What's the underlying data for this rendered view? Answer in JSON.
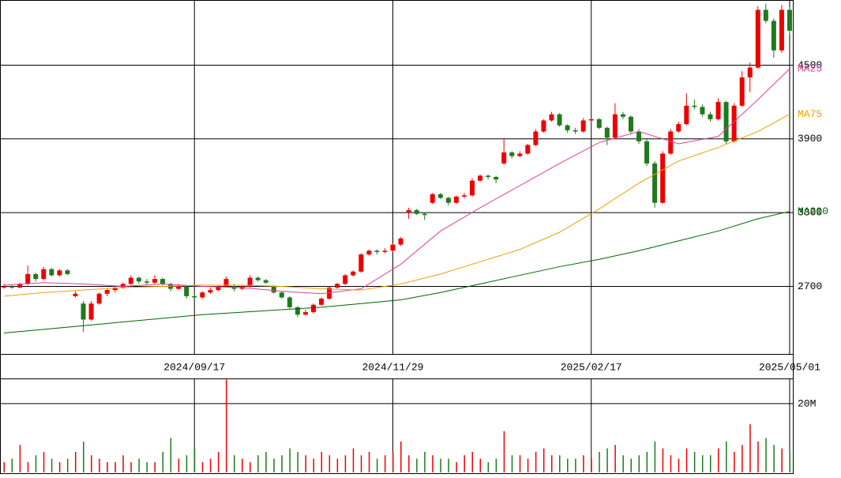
{
  "chart_data": {
    "type": "candlestick",
    "categories": [
      null,
      null,
      null,
      null,
      null,
      null,
      null,
      null,
      null,
      null,
      null,
      null,
      null,
      null,
      null,
      null,
      null,
      null,
      null,
      null,
      null,
      null,
      null,
      null,
      "2024/09/17",
      null,
      null,
      null,
      null,
      null,
      null,
      null,
      null,
      null,
      null,
      null,
      null,
      null,
      null,
      null,
      null,
      null,
      null,
      null,
      null,
      null,
      null,
      null,
      null,
      "2024/11/29",
      null,
      null,
      null,
      null,
      null,
      null,
      null,
      null,
      null,
      null,
      null,
      null,
      null,
      null,
      null,
      null,
      null,
      null,
      null,
      null,
      null,
      null,
      null,
      null,
      "2025/02/17",
      null,
      null,
      null,
      null,
      null,
      null,
      null,
      null,
      null,
      null,
      null,
      null,
      null,
      null,
      null,
      null,
      null,
      null,
      null,
      null,
      null,
      null,
      null,
      null,
      "2025/05/01"
    ],
    "ohlc": [
      [
        2690,
        2720,
        2680,
        2700
      ],
      [
        2700,
        2715,
        2680,
        2690
      ],
      [
        2690,
        2730,
        2685,
        2720
      ],
      [
        2720,
        2870,
        2710,
        2800
      ],
      [
        2800,
        2810,
        2740,
        2760
      ],
      [
        2760,
        2860,
        2750,
        2840
      ],
      [
        2840,
        2850,
        2780,
        2790
      ],
      [
        2790,
        2840,
        2780,
        2830
      ],
      [
        2830,
        2840,
        2790,
        2800
      ],
      [
        2620,
        2660,
        2610,
        2640
      ],
      [
        2560,
        2580,
        2330,
        2430
      ],
      [
        2430,
        2580,
        2420,
        2560
      ],
      [
        2560,
        2650,
        2550,
        2640
      ],
      [
        2640,
        2680,
        2620,
        2670
      ],
      [
        2670,
        2700,
        2650,
        2690
      ],
      [
        2690,
        2730,
        2680,
        2720
      ],
      [
        2720,
        2790,
        2710,
        2770
      ],
      [
        2770,
        2780,
        2720,
        2740
      ],
      [
        2740,
        2760,
        2710,
        2730
      ],
      [
        2730,
        2790,
        2720,
        2760
      ],
      [
        2760,
        2770,
        2700,
        2720
      ],
      [
        2720,
        2730,
        2660,
        2680
      ],
      [
        2680,
        2720,
        2670,
        2700
      ],
      [
        2700,
        2710,
        2600,
        2620
      ],
      [
        2620,
        2640,
        2590,
        2610
      ],
      [
        2610,
        2660,
        2600,
        2650
      ],
      [
        2650,
        2690,
        2640,
        2670
      ],
      [
        2670,
        2710,
        2660,
        2700
      ],
      [
        2700,
        2780,
        2690,
        2760
      ],
      [
        2700,
        2720,
        2660,
        2680
      ],
      [
        2680,
        2710,
        2670,
        2700
      ],
      [
        2700,
        2790,
        2690,
        2770
      ],
      [
        2770,
        2780,
        2740,
        2750
      ],
      [
        2750,
        2760,
        2720,
        2730
      ],
      [
        2700,
        2710,
        2640,
        2650
      ],
      [
        2650,
        2660,
        2600,
        2610
      ],
      [
        2610,
        2620,
        2520,
        2530
      ],
      [
        2530,
        2540,
        2450,
        2470
      ],
      [
        2470,
        2510,
        2460,
        2490
      ],
      [
        2490,
        2560,
        2480,
        2550
      ],
      [
        2550,
        2610,
        2540,
        2600
      ],
      [
        2600,
        2700,
        2590,
        2690
      ],
      [
        2690,
        2730,
        2680,
        2720
      ],
      [
        2720,
        2800,
        2710,
        2790
      ],
      [
        2790,
        2830,
        2780,
        2820
      ],
      [
        2820,
        2970,
        2810,
        2960
      ],
      [
        2960,
        3000,
        2950,
        2990
      ],
      [
        2990,
        3000,
        2960,
        2980
      ],
      [
        2980,
        3010,
        2970,
        2990
      ],
      [
        2990,
        3050,
        2980,
        3040
      ],
      [
        3040,
        3100,
        3030,
        3090
      ],
      [
        3300,
        3340,
        3250,
        3320
      ],
      [
        3320,
        3330,
        3280,
        3290
      ],
      [
        3290,
        3300,
        3240,
        3280
      ],
      [
        3380,
        3460,
        3370,
        3450
      ],
      [
        3450,
        3460,
        3410,
        3420
      ],
      [
        3420,
        3430,
        3360,
        3380
      ],
      [
        3380,
        3440,
        3370,
        3430
      ],
      [
        3430,
        3460,
        3420,
        3440
      ],
      [
        3440,
        3580,
        3430,
        3560
      ],
      [
        3560,
        3610,
        3550,
        3600
      ],
      [
        3600,
        3610,
        3570,
        3590
      ],
      [
        3590,
        3600,
        3540,
        3570
      ],
      [
        3700,
        3900,
        3690,
        3790
      ],
      [
        3790,
        3800,
        3740,
        3760
      ],
      [
        3760,
        3800,
        3750,
        3780
      ],
      [
        3780,
        3860,
        3770,
        3850
      ],
      [
        3850,
        3980,
        3840,
        3960
      ],
      [
        3960,
        4060,
        3950,
        4050
      ],
      [
        4050,
        4120,
        4040,
        4100
      ],
      [
        4100,
        4110,
        4000,
        4010
      ],
      [
        4010,
        4020,
        3950,
        3970
      ],
      [
        3970,
        3990,
        3940,
        3960
      ],
      [
        3960,
        4070,
        3950,
        4050
      ],
      [
        4050,
        4080,
        4030,
        4060
      ],
      [
        4060,
        4070,
        3980,
        3990
      ],
      [
        3990,
        4000,
        3850,
        3910
      ],
      [
        3910,
        4190,
        3900,
        4100
      ],
      [
        4100,
        4120,
        4060,
        4080
      ],
      [
        4080,
        4090,
        3940,
        3960
      ],
      [
        3960,
        3980,
        3860,
        3880
      ],
      [
        3880,
        3900,
        3680,
        3700
      ],
      [
        3700,
        3720,
        3340,
        3380
      ],
      [
        3380,
        3800,
        3370,
        3780
      ],
      [
        3780,
        3980,
        3770,
        3960
      ],
      [
        3960,
        4040,
        3950,
        4020
      ],
      [
        4020,
        4270,
        4010,
        4170
      ],
      [
        4170,
        4220,
        4140,
        4160
      ],
      [
        4160,
        4180,
        4080,
        4100
      ],
      [
        4100,
        4120,
        4040,
        4060
      ],
      [
        4060,
        4230,
        4050,
        4200
      ],
      [
        4200,
        4210,
        3860,
        3880
      ],
      [
        3880,
        4190,
        3870,
        4170
      ],
      [
        4170,
        4450,
        4160,
        4400
      ],
      [
        4400,
        4520,
        4280,
        4480
      ],
      [
        4480,
        4980,
        4470,
        4950
      ],
      [
        4950,
        5000,
        4840,
        4860
      ],
      [
        4860,
        4880,
        4560,
        4620
      ],
      [
        4620,
        4990,
        4600,
        4950
      ],
      [
        4950,
        4970,
        4750,
        4780
      ]
    ],
    "up_color": "#ee0000",
    "down_color": "#1e7a1e",
    "ylim": [
      2150,
      5030
    ],
    "yticks": [
      2700,
      3300,
      3900,
      4500
    ],
    "grid": true,
    "moving_averages": [
      {
        "name": "MA25",
        "color": "#e0409a",
        "x": [
          0,
          5,
          10,
          15,
          20,
          25,
          30,
          35,
          40,
          45,
          50,
          55,
          60,
          65,
          70,
          75,
          80,
          85,
          90,
          95,
          99
        ],
        "values": [
          2710,
          2730,
          2720,
          2700,
          2720,
          2700,
          2690,
          2660,
          2640,
          2680,
          2880,
          3150,
          3340,
          3520,
          3700,
          3870,
          3960,
          3860,
          3920,
          4220,
          4470
        ]
      },
      {
        "name": "MA75",
        "color": "#f0a000",
        "x": [
          0,
          5,
          10,
          15,
          20,
          25,
          30,
          35,
          40,
          45,
          50,
          55,
          60,
          65,
          70,
          75,
          80,
          85,
          90,
          95,
          99
        ],
        "values": [
          2620,
          2650,
          2670,
          2690,
          2700,
          2710,
          2710,
          2700,
          2680,
          2670,
          2720,
          2800,
          2900,
          3000,
          3140,
          3330,
          3540,
          3720,
          3830,
          3960,
          4100
        ]
      },
      {
        "name": "MA200",
        "color": "#006400",
        "x": [
          0,
          5,
          10,
          15,
          20,
          25,
          30,
          35,
          40,
          45,
          50,
          55,
          60,
          65,
          70,
          75,
          80,
          85,
          90,
          95,
          99
        ],
        "values": [
          2320,
          2350,
          2380,
          2410,
          2440,
          2470,
          2490,
          2510,
          2530,
          2560,
          2590,
          2650,
          2720,
          2790,
          2860,
          2920,
          2990,
          3070,
          3150,
          3250,
          3310
        ]
      }
    ],
    "volume": {
      "ylim": [
        0,
        27100000
      ],
      "yticks": [
        {
          "value": 20000000,
          "label": "20M"
        }
      ],
      "values": [
        3000000,
        4000000,
        8000000,
        3000000,
        5000000,
        6000000,
        4000000,
        3000000,
        4000000,
        6000000,
        9000000,
        5000000,
        4000000,
        3000000,
        3000000,
        5000000,
        3000000,
        4000000,
        3000000,
        3000000,
        6000000,
        10000000,
        4000000,
        5000000,
        7000000,
        3000000,
        4000000,
        6000000,
        27000000,
        5000000,
        4000000,
        3000000,
        5000000,
        6000000,
        4000000,
        5000000,
        7000000,
        6000000,
        5000000,
        4000000,
        6000000,
        5000000,
        4000000,
        5000000,
        7000000,
        5000000,
        6000000,
        4000000,
        5000000,
        6000000,
        9000000,
        5000000,
        4000000,
        6000000,
        5000000,
        4000000,
        4000000,
        3000000,
        5000000,
        6000000,
        4000000,
        3000000,
        4000000,
        12000000,
        5000000,
        5000000,
        4000000,
        6000000,
        7000000,
        5000000,
        5000000,
        4000000,
        4000000,
        5000000,
        4000000,
        6000000,
        7000000,
        8000000,
        5000000,
        4000000,
        5000000,
        6000000,
        9000000,
        7000000,
        5000000,
        4000000,
        7000000,
        6000000,
        5000000,
        5000000,
        7000000,
        9000000,
        6000000,
        8000000,
        14000000,
        9000000,
        10000000,
        8000000,
        7000000,
        6000000
      ]
    }
  }
}
